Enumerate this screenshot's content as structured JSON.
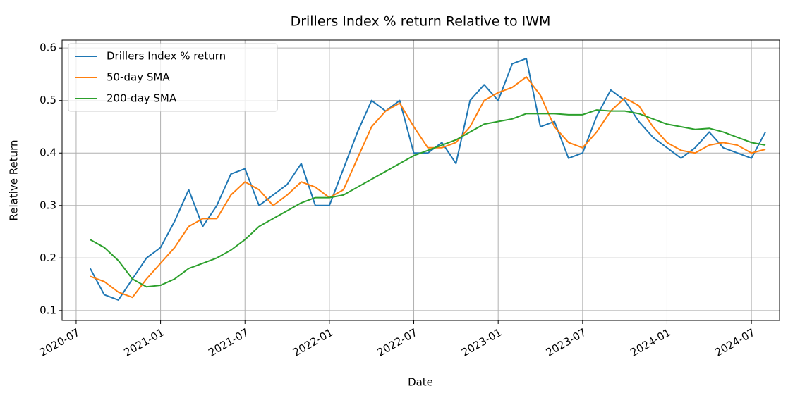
{
  "chart_data": {
    "type": "line",
    "title": "Drillers Index % return Relative to IWM",
    "x_label": "Date",
    "y_label": "Relative Return",
    "x": [
      "2020-08",
      "2020-09",
      "2020-10",
      "2020-11",
      "2020-12",
      "2021-01",
      "2021-02",
      "2021-03",
      "2021-04",
      "2021-05",
      "2021-06",
      "2021-07",
      "2021-08",
      "2021-09",
      "2021-10",
      "2021-11",
      "2021-12",
      "2022-01",
      "2022-02",
      "2022-03",
      "2022-04",
      "2022-05",
      "2022-06",
      "2022-07",
      "2022-08",
      "2022-09",
      "2022-10",
      "2022-11",
      "2022-12",
      "2023-01",
      "2023-02",
      "2023-03",
      "2023-04",
      "2023-05",
      "2023-06",
      "2023-07",
      "2023-08",
      "2023-09",
      "2023-10",
      "2023-11",
      "2023-12",
      "2024-01",
      "2024-02",
      "2024-03",
      "2024-04",
      "2024-05",
      "2024-06",
      "2024-07",
      "2024-08"
    ],
    "series": [
      {
        "name": "Drillers Index % return",
        "color": "#1f77b4",
        "values": [
          0.18,
          0.13,
          0.12,
          0.16,
          0.2,
          0.22,
          0.27,
          0.33,
          0.26,
          0.3,
          0.36,
          0.37,
          0.3,
          0.32,
          0.34,
          0.38,
          0.3,
          0.3,
          0.37,
          0.44,
          0.5,
          0.48,
          0.5,
          0.4,
          0.4,
          0.42,
          0.38,
          0.5,
          0.53,
          0.5,
          0.57,
          0.58,
          0.45,
          0.46,
          0.39,
          0.4,
          0.47,
          0.52,
          0.5,
          0.46,
          0.43,
          0.41,
          0.39,
          0.41,
          0.44,
          0.41,
          0.4,
          0.39,
          0.44
        ]
      },
      {
        "name": "50-day SMA",
        "color": "#ff7f0e",
        "values": [
          0.165,
          0.155,
          0.135,
          0.125,
          0.16,
          0.19,
          0.22,
          0.26,
          0.275,
          0.275,
          0.32,
          0.345,
          0.33,
          0.3,
          0.32,
          0.345,
          0.335,
          0.315,
          0.33,
          0.39,
          0.45,
          0.48,
          0.495,
          0.45,
          0.41,
          0.41,
          0.42,
          0.45,
          0.5,
          0.515,
          0.525,
          0.545,
          0.51,
          0.45,
          0.42,
          0.41,
          0.44,
          0.48,
          0.505,
          0.49,
          0.45,
          0.42,
          0.405,
          0.4,
          0.415,
          0.42,
          0.415,
          0.4,
          0.407
        ]
      },
      {
        "name": "200-day SMA",
        "color": "#2ca02c",
        "values": [
          0.235,
          0.22,
          0.195,
          0.16,
          0.145,
          0.148,
          0.16,
          0.18,
          0.19,
          0.2,
          0.215,
          0.235,
          0.26,
          0.275,
          0.29,
          0.305,
          0.315,
          0.315,
          0.32,
          0.335,
          0.35,
          0.365,
          0.38,
          0.395,
          0.405,
          0.415,
          0.425,
          0.44,
          0.455,
          0.46,
          0.465,
          0.475,
          0.475,
          0.475,
          0.473,
          0.473,
          0.482,
          0.48,
          0.48,
          0.475,
          0.465,
          0.455,
          0.45,
          0.445,
          0.447,
          0.44,
          0.43,
          0.42,
          0.415
        ]
      }
    ],
    "xlim": [
      "2020-06",
      "2024-09"
    ],
    "xticks": [
      "2020-07",
      "2021-01",
      "2021-07",
      "2022-01",
      "2022-07",
      "2023-01",
      "2023-07",
      "2024-01",
      "2024-07"
    ],
    "ylim": [
      0.081,
      0.615
    ],
    "yticks": [
      0.1,
      0.2,
      0.3,
      0.4,
      0.5,
      0.6
    ],
    "grid": true,
    "legend": "upper-left"
  }
}
